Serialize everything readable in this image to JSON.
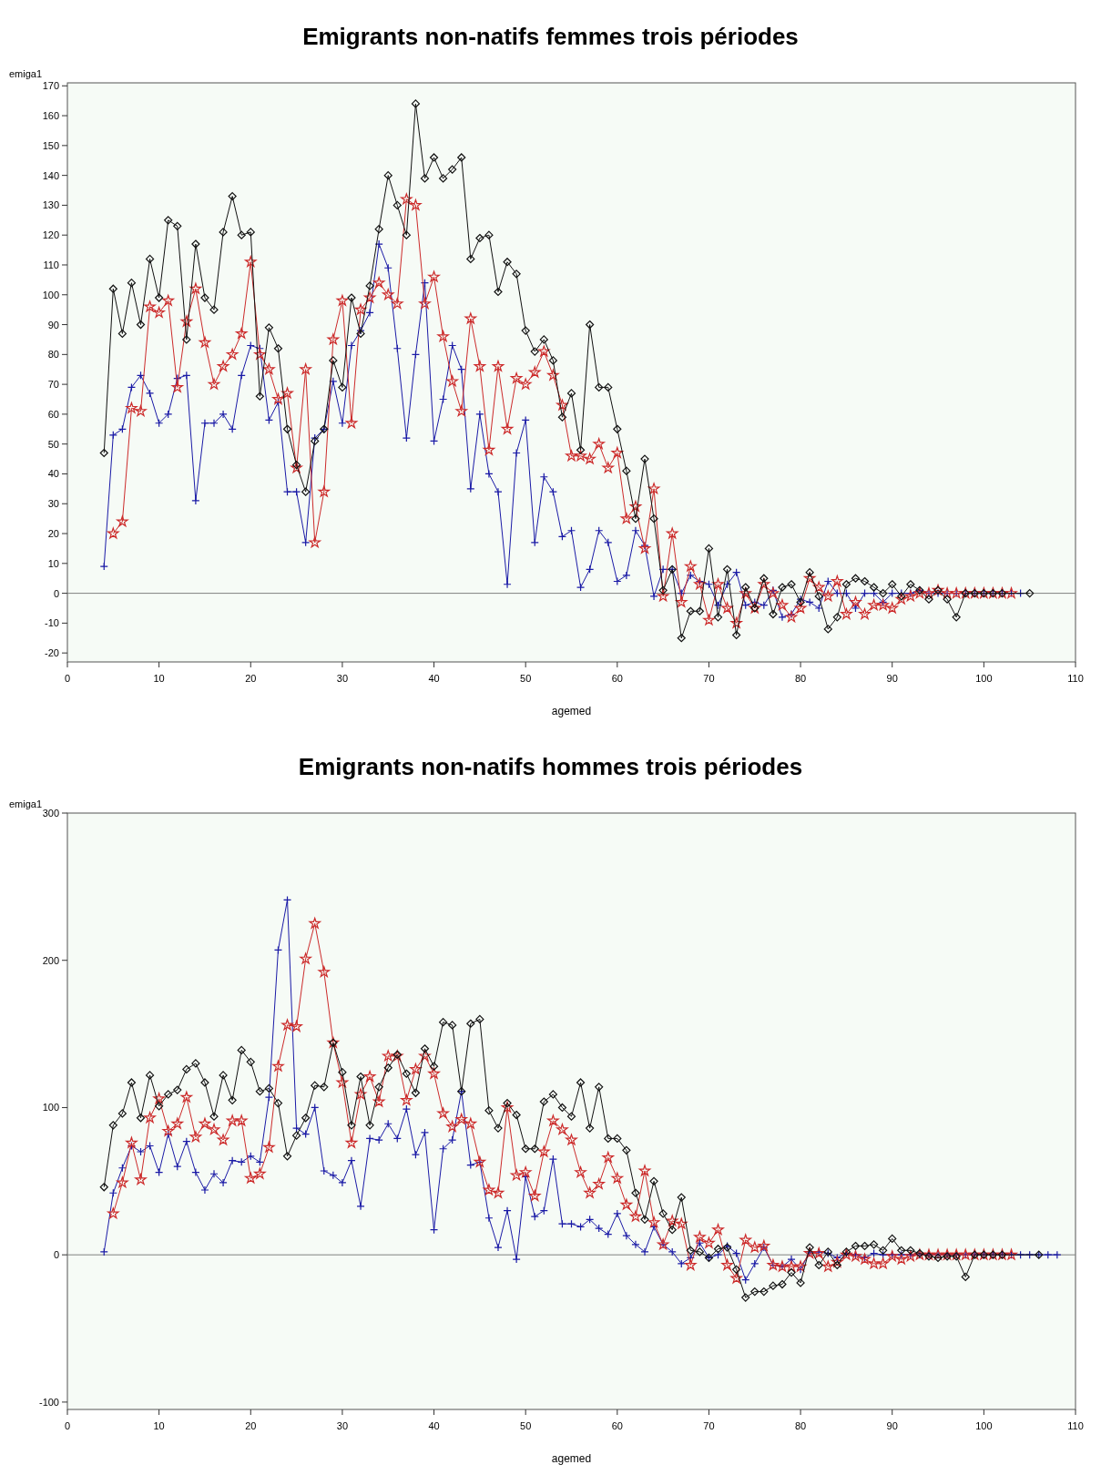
{
  "chart_data": [
    {
      "type": "line",
      "title": "Emigrants non-natifs femmes trois périodes",
      "xlabel": "agemed",
      "ylabel": "emiga1",
      "xlim": [
        0,
        110
      ],
      "xticks": [
        0,
        10,
        20,
        30,
        40,
        50,
        60,
        70,
        80,
        90,
        100,
        110
      ],
      "ylim": [
        -23,
        171
      ],
      "yticks": [
        -20,
        -10,
        0,
        10,
        20,
        30,
        40,
        50,
        60,
        70,
        80,
        90,
        100,
        110,
        120,
        130,
        140,
        150,
        160,
        170
      ],
      "ref_lines": [
        {
          "axis": "y",
          "value": 0,
          "color": "#808080"
        }
      ],
      "series": [
        {
          "color": "#1a1aa6",
          "marker": "cross",
          "x": [
            4,
            5,
            6,
            7,
            8,
            9,
            10,
            11,
            12,
            13,
            14,
            15,
            16,
            17,
            18,
            19,
            20,
            21,
            22,
            23,
            24,
            25,
            26,
            27,
            28,
            29,
            30,
            31,
            32,
            33,
            34,
            35,
            36,
            37,
            38,
            39,
            40,
            41,
            42,
            43,
            44,
            45,
            46,
            47,
            48,
            49,
            50,
            51,
            52,
            53,
            54,
            55,
            56,
            57,
            58,
            59,
            60,
            61,
            62,
            63,
            64,
            65,
            66,
            67,
            68,
            69,
            70,
            71,
            72,
            73,
            74,
            75,
            76,
            77,
            78,
            79,
            80,
            81,
            82,
            83,
            84,
            85,
            86,
            87,
            88,
            89,
            90,
            91,
            92,
            93,
            94,
            95,
            96,
            97,
            98,
            99,
            100,
            101,
            102,
            103,
            104
          ],
          "values": [
            9,
            53,
            55,
            69,
            73,
            67,
            57,
            60,
            72,
            73,
            31,
            57,
            57,
            60,
            55,
            73,
            83,
            82,
            58,
            64,
            34,
            34,
            17,
            52,
            55,
            71,
            57,
            83,
            88,
            94,
            117,
            109,
            82,
            52,
            80,
            104,
            51,
            65,
            83,
            75,
            35,
            60,
            40,
            34,
            3,
            47,
            58,
            17,
            39,
            34,
            19,
            21,
            2,
            8,
            21,
            17,
            4,
            6,
            21,
            16,
            -1,
            8,
            8,
            0,
            6,
            4,
            3,
            -4,
            3,
            7,
            -4,
            -3,
            -4,
            1,
            -8,
            -7,
            -2,
            -3,
            -5,
            4,
            0,
            0,
            -5,
            0,
            0,
            -3,
            0,
            0,
            0,
            1,
            0,
            0,
            0,
            0,
            0,
            0,
            0,
            0,
            0,
            0,
            0
          ]
        },
        {
          "color": "#cc2a2a",
          "marker": "star",
          "x": [
            5,
            6,
            7,
            8,
            9,
            10,
            11,
            12,
            13,
            14,
            15,
            16,
            17,
            18,
            19,
            20,
            21,
            22,
            23,
            24,
            25,
            26,
            27,
            28,
            29,
            30,
            31,
            32,
            33,
            34,
            35,
            36,
            37,
            38,
            39,
            40,
            41,
            42,
            43,
            44,
            45,
            46,
            47,
            48,
            49,
            50,
            51,
            52,
            53,
            54,
            55,
            56,
            57,
            58,
            59,
            60,
            61,
            62,
            63,
            64,
            65,
            66,
            67,
            68,
            69,
            70,
            71,
            72,
            73,
            74,
            75,
            76,
            77,
            78,
            79,
            80,
            81,
            82,
            83,
            84,
            85,
            86,
            87,
            88,
            89,
            90,
            91,
            92,
            93,
            94,
            95,
            96,
            97,
            98,
            99,
            100,
            101,
            102,
            103
          ],
          "values": [
            20,
            24,
            62,
            61,
            96,
            94,
            98,
            69,
            91,
            102,
            84,
            70,
            76,
            80,
            87,
            111,
            80,
            75,
            65,
            67,
            42,
            75,
            17,
            34,
            85,
            98,
            57,
            95,
            99,
            104,
            100,
            97,
            132,
            130,
            97,
            106,
            86,
            71,
            61,
            92,
            76,
            48,
            76,
            55,
            72,
            70,
            74,
            81,
            73,
            63,
            46,
            46,
            45,
            50,
            42,
            47,
            25,
            29,
            15,
            35,
            -1,
            20,
            -3,
            9,
            3,
            -9,
            3,
            -5,
            -10,
            0,
            -5,
            3,
            0,
            -4,
            -8,
            -5,
            5,
            2,
            -1,
            4,
            -7,
            -3,
            -7,
            -4,
            -4,
            -5,
            -2,
            -1,
            0,
            0,
            1,
            0,
            0,
            0,
            0,
            0,
            0,
            0,
            0
          ]
        },
        {
          "color": "#111111",
          "marker": "diamond",
          "x": [
            4,
            5,
            6,
            7,
            8,
            9,
            10,
            11,
            12,
            13,
            14,
            15,
            16,
            17,
            18,
            19,
            20,
            21,
            22,
            23,
            24,
            25,
            26,
            27,
            28,
            29,
            30,
            31,
            32,
            33,
            34,
            35,
            36,
            37,
            38,
            39,
            40,
            41,
            42,
            43,
            44,
            45,
            46,
            47,
            48,
            49,
            50,
            51,
            52,
            53,
            54,
            55,
            56,
            57,
            58,
            59,
            60,
            61,
            62,
            63,
            64,
            65,
            66,
            67,
            68,
            69,
            70,
            71,
            72,
            73,
            74,
            75,
            76,
            77,
            78,
            79,
            80,
            81,
            82,
            83,
            84,
            85,
            86,
            87,
            88,
            89,
            90,
            91,
            92,
            93,
            94,
            95,
            96,
            97,
            98,
            99,
            100,
            101,
            102,
            105
          ],
          "values": [
            47,
            102,
            87,
            104,
            90,
            112,
            99,
            125,
            123,
            85,
            117,
            99,
            95,
            121,
            133,
            120,
            121,
            66,
            89,
            82,
            55,
            43,
            34,
            51,
            55,
            78,
            69,
            99,
            87,
            103,
            122,
            140,
            130,
            120,
            164,
            139,
            146,
            139,
            142,
            146,
            112,
            119,
            120,
            101,
            111,
            107,
            88,
            81,
            85,
            78,
            59,
            67,
            48,
            90,
            69,
            69,
            55,
            41,
            25,
            45,
            25,
            1,
            8,
            -15,
            -6,
            -6,
            15,
            -8,
            8,
            -14,
            2,
            -5,
            5,
            -7,
            2,
            3,
            -3,
            7,
            -1,
            -12,
            -8,
            3,
            5,
            4,
            2,
            0,
            3,
            -1,
            3,
            1,
            -2,
            1,
            -2,
            -8,
            0,
            0,
            0,
            0,
            0,
            0
          ]
        }
      ]
    },
    {
      "type": "line",
      "title": "Emigrants non-natifs hommes trois périodes",
      "xlabel": "agemed",
      "ylabel": "emiga1",
      "xlim": [
        0,
        110
      ],
      "xticks": [
        0,
        10,
        20,
        30,
        40,
        50,
        60,
        70,
        80,
        90,
        100,
        110
      ],
      "ylim": [
        -105,
        300
      ],
      "yticks": [
        -100,
        0,
        100,
        200,
        300
      ],
      "ref_lines": [
        {
          "axis": "y",
          "value": 0,
          "color": "#808080"
        }
      ],
      "series": [
        {
          "color": "#1a1aa6",
          "marker": "cross",
          "x": [
            4,
            5,
            6,
            7,
            8,
            9,
            10,
            11,
            12,
            13,
            14,
            15,
            16,
            17,
            18,
            19,
            20,
            21,
            22,
            23,
            24,
            25,
            26,
            27,
            28,
            29,
            30,
            31,
            32,
            33,
            34,
            35,
            36,
            37,
            38,
            39,
            40,
            41,
            42,
            43,
            44,
            45,
            46,
            47,
            48,
            49,
            50,
            51,
            52,
            53,
            54,
            55,
            56,
            57,
            58,
            59,
            60,
            61,
            62,
            63,
            64,
            65,
            66,
            67,
            68,
            69,
            70,
            71,
            72,
            73,
            74,
            75,
            76,
            77,
            78,
            79,
            80,
            81,
            82,
            83,
            84,
            85,
            86,
            87,
            88,
            89,
            90,
            91,
            92,
            93,
            94,
            95,
            96,
            97,
            98,
            99,
            100,
            101,
            102,
            103,
            104,
            105,
            106,
            107,
            108
          ],
          "values": [
            2,
            42,
            59,
            74,
            70,
            74,
            56,
            82,
            60,
            77,
            56,
            44,
            55,
            49,
            64,
            63,
            67,
            63,
            107,
            207,
            241,
            86,
            82,
            100,
            57,
            54,
            49,
            64,
            33,
            79,
            78,
            89,
            79,
            99,
            68,
            83,
            17,
            72,
            78,
            111,
            61,
            63,
            25,
            5,
            30,
            -3,
            53,
            26,
            30,
            65,
            21,
            21,
            19,
            24,
            18,
            14,
            28,
            13,
            7,
            2,
            19,
            7,
            2,
            -6,
            -2,
            8,
            -2,
            0,
            6,
            1,
            -17,
            -6,
            5,
            -7,
            -8,
            -3,
            -10,
            2,
            2,
            1,
            -2,
            1,
            0,
            -2,
            1,
            0,
            0,
            0,
            0,
            0,
            0,
            0,
            0,
            0,
            0,
            0,
            0,
            0,
            0,
            0,
            0,
            0,
            0,
            0,
            0
          ]
        },
        {
          "color": "#cc2a2a",
          "marker": "star",
          "x": [
            5,
            6,
            7,
            8,
            9,
            10,
            11,
            12,
            13,
            14,
            15,
            16,
            17,
            18,
            19,
            20,
            21,
            22,
            23,
            24,
            25,
            26,
            27,
            28,
            29,
            30,
            31,
            32,
            33,
            34,
            35,
            36,
            37,
            38,
            39,
            40,
            41,
            42,
            43,
            44,
            45,
            46,
            47,
            48,
            49,
            50,
            51,
            52,
            53,
            54,
            55,
            56,
            57,
            58,
            59,
            60,
            61,
            62,
            63,
            64,
            65,
            66,
            67,
            68,
            69,
            70,
            71,
            72,
            73,
            74,
            75,
            76,
            77,
            78,
            79,
            80,
            81,
            82,
            83,
            84,
            85,
            86,
            87,
            88,
            89,
            90,
            91,
            92,
            93,
            94,
            95,
            96,
            97,
            98,
            99,
            100,
            101,
            102,
            103
          ],
          "values": [
            28,
            49,
            76,
            51,
            93,
            106,
            84,
            89,
            107,
            80,
            89,
            85,
            78,
            91,
            91,
            52,
            55,
            73,
            128,
            156,
            155,
            201,
            225,
            192,
            144,
            117,
            76,
            109,
            121,
            104,
            135,
            135,
            105,
            126,
            135,
            123,
            96,
            87,
            92,
            89,
            63,
            44,
            42,
            100,
            54,
            56,
            40,
            70,
            91,
            85,
            78,
            56,
            42,
            48,
            66,
            52,
            34,
            26,
            57,
            22,
            7,
            23,
            21,
            -7,
            12,
            8,
            17,
            -7,
            -16,
            10,
            5,
            6,
            -7,
            -8,
            -8,
            -8,
            1,
            1,
            -8,
            -5,
            0,
            -1,
            -3,
            -6,
            -6,
            -1,
            -3,
            -1,
            0,
            0,
            0,
            0,
            0,
            0,
            0,
            0,
            0,
            0,
            0
          ]
        },
        {
          "color": "#111111",
          "marker": "diamond",
          "x": [
            4,
            5,
            6,
            7,
            8,
            9,
            10,
            11,
            12,
            13,
            14,
            15,
            16,
            17,
            18,
            19,
            20,
            21,
            22,
            23,
            24,
            25,
            26,
            27,
            28,
            29,
            30,
            31,
            32,
            33,
            34,
            35,
            36,
            37,
            38,
            39,
            40,
            41,
            42,
            43,
            44,
            45,
            46,
            47,
            48,
            49,
            50,
            51,
            52,
            53,
            54,
            55,
            56,
            57,
            58,
            59,
            60,
            61,
            62,
            63,
            64,
            65,
            66,
            67,
            68,
            69,
            70,
            71,
            72,
            73,
            74,
            75,
            76,
            77,
            78,
            79,
            80,
            81,
            82,
            83,
            84,
            85,
            86,
            87,
            88,
            89,
            90,
            91,
            92,
            93,
            94,
            95,
            96,
            97,
            98,
            99,
            100,
            101,
            102,
            106
          ],
          "values": [
            46,
            88,
            96,
            117,
            93,
            122,
            101,
            109,
            112,
            126,
            130,
            117,
            94,
            122,
            105,
            139,
            131,
            111,
            113,
            103,
            67,
            81,
            93,
            115,
            114,
            144,
            124,
            88,
            121,
            88,
            114,
            127,
            136,
            123,
            110,
            140,
            128,
            158,
            156,
            111,
            157,
            160,
            98,
            86,
            103,
            95,
            72,
            72,
            104,
            109,
            100,
            94,
            117,
            86,
            114,
            79,
            79,
            71,
            42,
            24,
            50,
            28,
            17,
            39,
            3,
            2,
            -2,
            4,
            5,
            -10,
            -29,
            -25,
            -25,
            -21,
            -20,
            -12,
            -19,
            5,
            -7,
            2,
            -7,
            2,
            6,
            6,
            7,
            3,
            11,
            3,
            3,
            1,
            -1,
            -2,
            -1,
            -1,
            -15,
            0,
            0,
            0,
            0,
            0
          ]
        }
      ]
    }
  ]
}
